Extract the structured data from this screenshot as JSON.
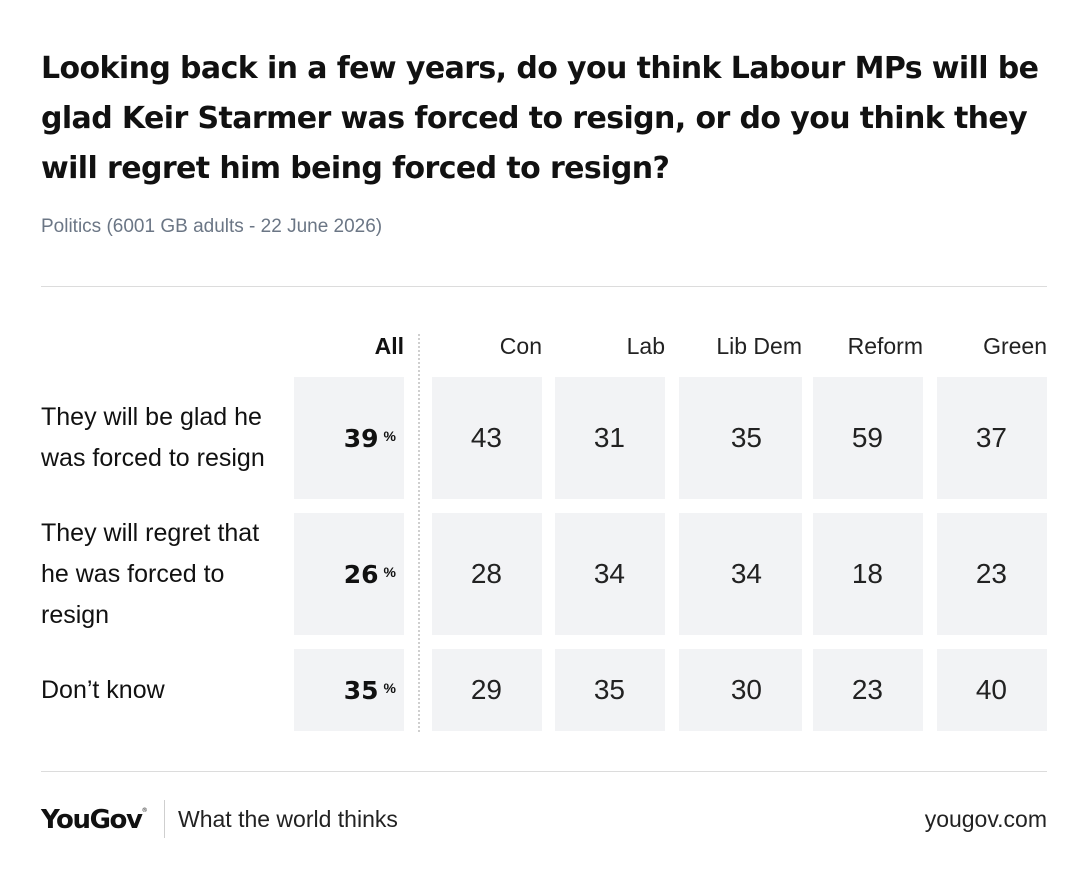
{
  "title": "Looking back in a few years, do you think Labour MPs will be glad Keir Starmer was forced to resign, or do you think they will regret him being forced to resign?",
  "subtitle": "Politics (6001 GB adults - 22 June 2026)",
  "colors": {
    "cell_bg": "#f2f3f5",
    "subtitle": "#6b7685",
    "rule": "#dcdcdc"
  },
  "chart_data": {
    "type": "table",
    "columns": [
      "All",
      "Con",
      "Lab",
      "Lib Dem",
      "Reform",
      "Green"
    ],
    "unit_symbol": "%",
    "rows": [
      {
        "label": "They will be glad he was forced to resign",
        "values": [
          39,
          43,
          31,
          35,
          59,
          37
        ]
      },
      {
        "label": "They will regret that he was forced to resign",
        "values": [
          26,
          28,
          34,
          34,
          18,
          23
        ]
      },
      {
        "label": "Don’t know",
        "values": [
          35,
          29,
          35,
          30,
          23,
          40
        ]
      }
    ]
  },
  "footer": {
    "brand": "YouGov",
    "tagline": "What the world thinks",
    "site": "yougov.com"
  }
}
